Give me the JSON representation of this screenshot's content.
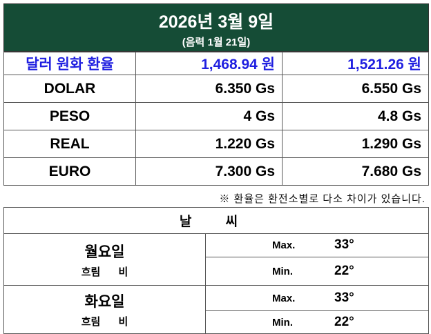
{
  "header": {
    "title": "2026년 3월 9일",
    "lunar": "(음력 1월 21일)"
  },
  "rates": {
    "head": {
      "label": "달러 원화 환율",
      "buy": "1,468.94 원",
      "sell": "1,521.26 원"
    },
    "rows": [
      {
        "label": "DOLAR",
        "buy": "6.350 Gs",
        "sell": "6.550 Gs"
      },
      {
        "label": "PESO",
        "buy": "4 Gs",
        "sell": "4.8 Gs"
      },
      {
        "label": "REAL",
        "buy": "1.220 Gs",
        "sell": "1.290 Gs"
      },
      {
        "label": "EURO",
        "buy": "7.300 Gs",
        "sell": "7.680 Gs"
      }
    ],
    "note": "※ 환율은 환전소별로 다소 차이가 있습니다."
  },
  "weather": {
    "title": "날 씨",
    "days": [
      {
        "day": "월요일",
        "condition": "흐림 비",
        "max_label": "Max.",
        "max": "33°",
        "min_label": "Min.",
        "min": "22°"
      },
      {
        "day": "화요일",
        "condition": "흐림 비",
        "max_label": "Max.",
        "max": "33°",
        "min_label": "Min.",
        "min": "22°"
      }
    ]
  }
}
